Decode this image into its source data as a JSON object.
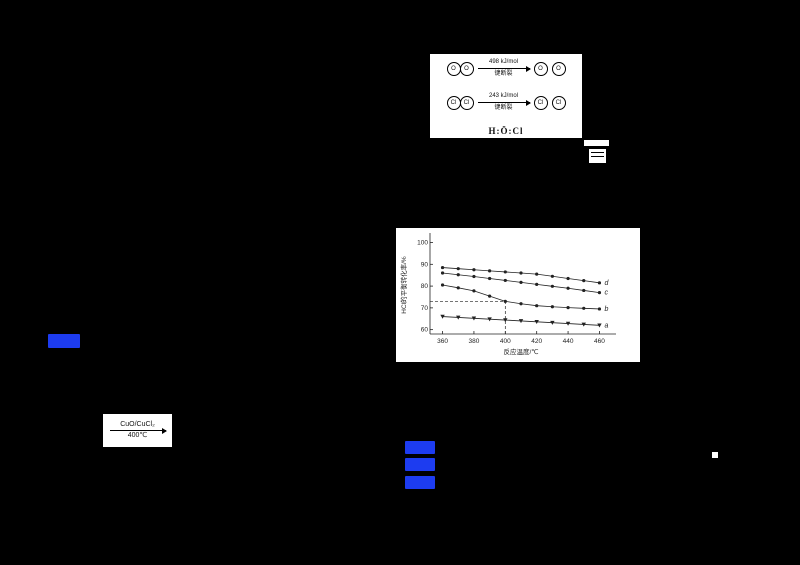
{
  "page": {
    "background": "#000000"
  },
  "bond_diagram": {
    "rows": [
      {
        "left_atoms": [
          "O",
          "O"
        ],
        "energy": "498 kJ/mol",
        "action": "键断裂",
        "right_atoms": [
          "O",
          "O"
        ]
      },
      {
        "left_atoms": [
          "Cl",
          "Cl"
        ],
        "energy": "243 kJ/mol",
        "action": "键断裂",
        "right_atoms": [
          "Cl",
          "Cl"
        ]
      }
    ],
    "lewis_structure": "H:Ö:Cl"
  },
  "reaction_condition": {
    "catalyst": "CuO/CuCl₂",
    "temperature": "400℃"
  },
  "chart_data": {
    "type": "line",
    "title": "",
    "xlabel": "反应温度/℃",
    "ylabel": "HCl的平衡转化率/%",
    "xlim": [
      352,
      468
    ],
    "ylim": [
      58,
      103
    ],
    "xticks": [
      360,
      380,
      400,
      420,
      440,
      460
    ],
    "yticks": [
      60,
      70,
      80,
      90,
      100
    ],
    "grid": false,
    "legend_position": "right-end-labels",
    "x": [
      360,
      370,
      380,
      390,
      400,
      410,
      420,
      430,
      440,
      450,
      460
    ],
    "series": [
      {
        "name": "d",
        "marker": "circle",
        "values": [
          88.5,
          88,
          87.5,
          87,
          86.5,
          86,
          85.5,
          84.5,
          83.5,
          82.5,
          81.5
        ]
      },
      {
        "name": "c",
        "marker": "circle",
        "values": [
          86,
          85.2,
          84.4,
          83.5,
          82.6,
          81.7,
          80.8,
          79.9,
          79,
          78,
          77
        ]
      },
      {
        "name": "b",
        "marker": "circle",
        "values": [
          80.5,
          79.2,
          77.8,
          75.4,
          73,
          71.9,
          71,
          70.5,
          70.1,
          69.8,
          69.5
        ]
      },
      {
        "name": "a",
        "marker": "triangle-down",
        "values": [
          66,
          65.6,
          65.2,
          64.8,
          64.4,
          64,
          63.6,
          63.2,
          62.8,
          62.4,
          62
        ]
      }
    ],
    "guides": {
      "x": 400,
      "y": 73
    },
    "line_color": "#222222"
  },
  "colors": {
    "highlight_blue": "#1d3cf0",
    "panel_white": "#ffffff"
  }
}
